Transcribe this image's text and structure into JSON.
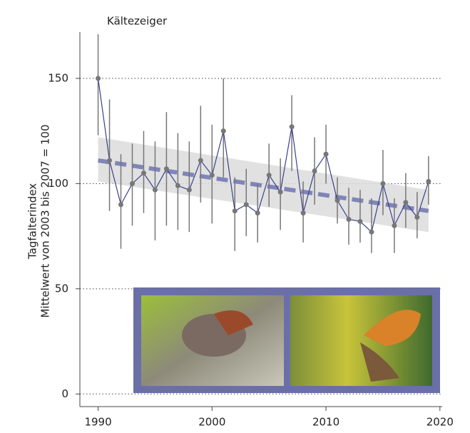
{
  "chart_data": {
    "type": "errorbar-line",
    "title": "Kältezeiger",
    "y_label": [
      "Tagfalterindex",
      "Mittelwert von 2003 bis 2007 = 100"
    ],
    "x": [
      1990,
      1991,
      1992,
      1993,
      1994,
      1995,
      1996,
      1997,
      1998,
      1999,
      2000,
      2001,
      2002,
      2003,
      2004,
      2005,
      2006,
      2007,
      2008,
      2009,
      2010,
      2011,
      2012,
      2013,
      2014,
      2015,
      2016,
      2017,
      2018,
      2019
    ],
    "series": [
      {
        "color": "#3a3f8f",
        "marker_color": "#777777",
        "values": [
          150,
          111,
          90,
          100,
          105,
          97,
          107,
          99,
          97,
          111,
          104,
          125,
          87,
          90,
          86,
          104,
          96,
          127,
          86,
          106,
          114,
          92,
          83,
          82,
          77,
          100,
          80,
          91,
          84,
          101
        ],
        "lower": [
          123,
          87,
          69,
          80,
          86,
          73,
          80,
          78,
          77,
          91,
          81,
          103,
          68,
          75,
          72,
          89,
          78,
          106,
          72,
          90,
          100,
          81,
          71,
          72,
          67,
          85,
          67,
          79,
          74,
          90
        ],
        "upper": [
          171,
          140,
          114,
          119,
          125,
          120,
          134,
          124,
          120,
          137,
          128,
          150,
          103,
          107,
          100,
          119,
          112,
          142,
          101,
          122,
          128,
          103,
          98,
          97,
          93,
          116,
          93,
          105,
          96,
          113
        ]
      }
    ],
    "trend": {
      "x": [
        1990,
        2019
      ],
      "values": [
        111,
        87
      ],
      "lower": [
        101,
        77
      ],
      "upper": [
        122,
        97
      ],
      "color": "#8085b8",
      "band_color": "#dcdcdc"
    },
    "xlim": [
      1988.4,
      2020.2
    ],
    "ylim": [
      -6,
      172
    ],
    "xticks": [
      1990,
      2000,
      2010,
      2020
    ],
    "yticks": [
      0,
      50,
      100,
      150
    ],
    "grid": true
  }
}
